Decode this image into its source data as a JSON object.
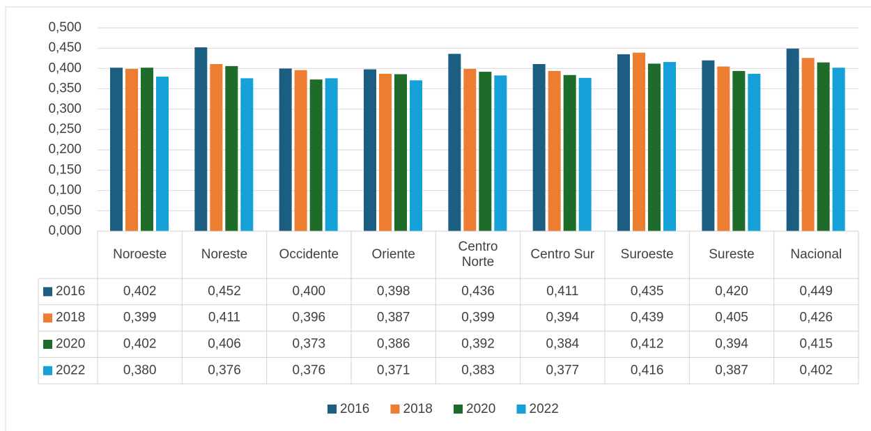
{
  "chart_data": {
    "type": "bar",
    "categories": [
      "Noroeste",
      "Noreste",
      "Occidente",
      "Oriente",
      "Centro Norte",
      "Centro Sur",
      "Suroeste",
      "Sureste",
      "Nacional"
    ],
    "series": [
      {
        "name": "2016",
        "color": "#1b5e82",
        "values": [
          0.402,
          0.452,
          0.4,
          0.398,
          0.436,
          0.411,
          0.435,
          0.42,
          0.449
        ],
        "value_labels": [
          "0,402",
          "0,452",
          "0,400",
          "0,398",
          "0,436",
          "0,411",
          "0,435",
          "0,420",
          "0,449"
        ]
      },
      {
        "name": "2018",
        "color": "#ed7d31",
        "values": [
          0.399,
          0.411,
          0.396,
          0.387,
          0.399,
          0.394,
          0.439,
          0.405,
          0.426
        ],
        "value_labels": [
          "0,399",
          "0,411",
          "0,396",
          "0,387",
          "0,399",
          "0,394",
          "0,439",
          "0,405",
          "0,426"
        ]
      },
      {
        "name": "2020",
        "color": "#1e6b2a",
        "values": [
          0.402,
          0.406,
          0.373,
          0.386,
          0.392,
          0.384,
          0.412,
          0.394,
          0.415
        ],
        "value_labels": [
          "0,402",
          "0,406",
          "0,373",
          "0,386",
          "0,392",
          "0,384",
          "0,412",
          "0,394",
          "0,415"
        ]
      },
      {
        "name": "2022",
        "color": "#15a0d8",
        "values": [
          0.38,
          0.376,
          0.376,
          0.371,
          0.383,
          0.377,
          0.416,
          0.387,
          0.402
        ],
        "value_labels": [
          "0,380",
          "0,376",
          "0,376",
          "0,371",
          "0,383",
          "0,377",
          "0,416",
          "0,387",
          "0,402"
        ]
      }
    ],
    "ylim": [
      0,
      0.5
    ],
    "yticks": [
      {
        "value": 0,
        "label": "0,000"
      },
      {
        "value": 0.05,
        "label": "0,050"
      },
      {
        "value": 0.1,
        "label": "0,100"
      },
      {
        "value": 0.15,
        "label": "0,150"
      },
      {
        "value": 0.2,
        "label": "0,200"
      },
      {
        "value": 0.25,
        "label": "0,250"
      },
      {
        "value": 0.3,
        "label": "0,300"
      },
      {
        "value": 0.35,
        "label": "0,350"
      },
      {
        "value": 0.4,
        "label": "0,400"
      },
      {
        "value": 0.45,
        "label": "0,450"
      },
      {
        "value": 0.5,
        "label": "0,500"
      }
    ],
    "grid": true,
    "legend": "bottom"
  }
}
